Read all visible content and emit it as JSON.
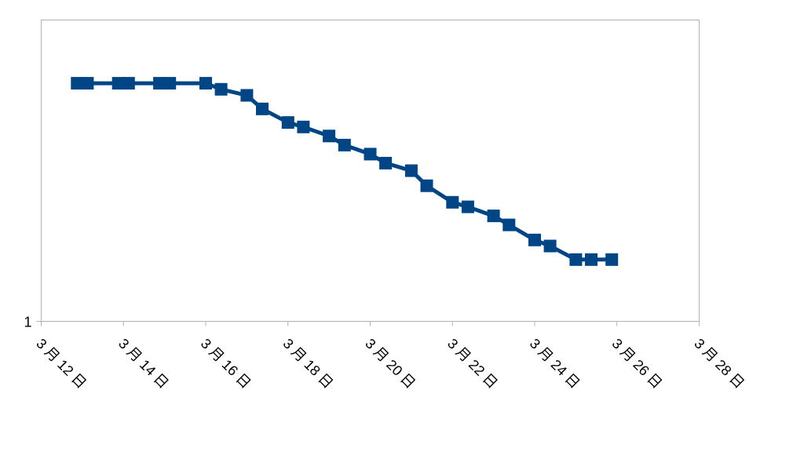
{
  "chart_data": {
    "type": "line",
    "title": "",
    "xlabel": "",
    "ylabel": "",
    "x_axis": {
      "kind": "date",
      "range": [
        "3 月 12 日",
        "3 月 28 日"
      ],
      "tick_labels": [
        "3 月 12 日",
        "3 月 14 日",
        "3 月 16 日",
        "3 月 18 日",
        "3 月 20 日",
        "3 月 22 日",
        "3 月 24 日",
        "3 月 26 日",
        "3 月 28 日"
      ]
    },
    "y_axis": {
      "tick_labels": [
        "1"
      ]
    },
    "grid": false,
    "legend": "none",
    "series": [
      {
        "color": "#004586",
        "marker": "square",
        "x": [
          "3 月 12 日 21:00",
          "3 月 13 日 03:00",
          "3 月 13 日 21:00",
          "3 月 14 日 03:00",
          "3 月 14 日 21:00",
          "3 月 15 日 03:00",
          "3 月 16 日 00:00",
          "3 月 16 日 09:00",
          "3 月 17 日 00:00",
          "3 月 17 日 09:00",
          "3 月 18 日 00:00",
          "3 月 18 日 09:00",
          "3 月 19 日 00:00",
          "3 月 19 日 09:00",
          "3 月 20 日 00:00",
          "3 月 20 日 09:00",
          "3 月 21 日 00:00",
          "3 月 21 日 09:00",
          "3 月 22 日 00:00",
          "3 月 22 日 09:00",
          "3 月 23 日 00:00",
          "3 月 23 日 09:00",
          "3 月 24 日 00:00",
          "3 月 24 日 09:00",
          "3 月 25 日 00:00",
          "3 月 25 日 09:00",
          "3 月 25 日 21:00"
        ],
        "y_level": [
          0.79,
          0.79,
          0.79,
          0.79,
          0.79,
          0.79,
          0.79,
          0.77,
          0.75,
          0.705,
          0.66,
          0.645,
          0.615,
          0.585,
          0.555,
          0.525,
          0.5,
          0.45,
          0.395,
          0.38,
          0.35,
          0.32,
          0.27,
          0.25,
          0.205,
          0.205,
          0.205
        ]
      }
    ]
  }
}
